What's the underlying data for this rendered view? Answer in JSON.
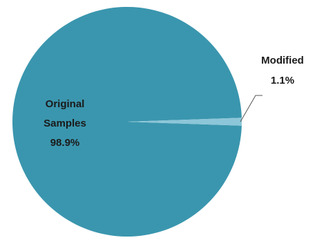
{
  "chart_data": {
    "type": "pie",
    "slices": [
      {
        "label_lines": [
          "Original",
          "Samples"
        ],
        "percent_label": "98.9%",
        "value": 98.9,
        "color": "#3a96ae"
      },
      {
        "label_lines": [
          "Modified"
        ],
        "percent_label": "1.1%",
        "value": 1.1,
        "color": "#8cc6d8"
      }
    ]
  }
}
